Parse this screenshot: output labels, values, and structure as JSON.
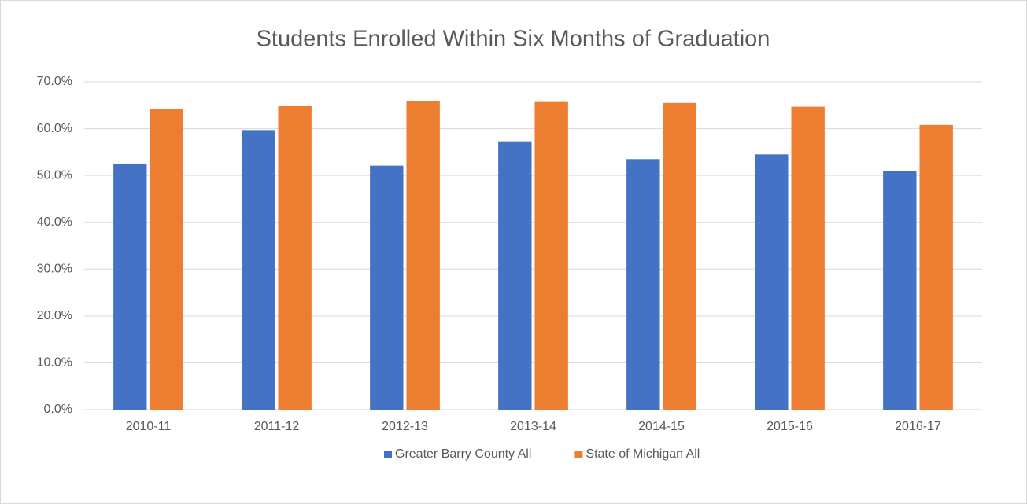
{
  "chart_data": {
    "type": "bar",
    "title": "Students Enrolled Within Six Months of Graduation",
    "categories": [
      "2010-11",
      "2011-12",
      "2012-13",
      "2013-14",
      "2014-15",
      "2015-16",
      "2016-17"
    ],
    "series": [
      {
        "name": "Greater Barry County All",
        "color": "#4472c4",
        "values": [
          52.5,
          59.7,
          52.1,
          57.3,
          53.5,
          54.5,
          50.9
        ]
      },
      {
        "name": "State of Michigan All",
        "color": "#ed7d31",
        "values": [
          64.2,
          64.8,
          65.9,
          65.7,
          65.5,
          64.7,
          60.8
        ]
      }
    ],
    "ylim": [
      0,
      70
    ],
    "yticks": [
      {
        "value": 0,
        "label": "0.0%"
      },
      {
        "value": 10,
        "label": "10.0%"
      },
      {
        "value": 20,
        "label": "20.0%"
      },
      {
        "value": 30,
        "label": "30.0%"
      },
      {
        "value": 40,
        "label": "40.0%"
      },
      {
        "value": 50,
        "label": "50.0%"
      },
      {
        "value": 60,
        "label": "60.0%"
      },
      {
        "value": 70,
        "label": "70.0%"
      }
    ],
    "grid": true,
    "legend": "bottom"
  }
}
